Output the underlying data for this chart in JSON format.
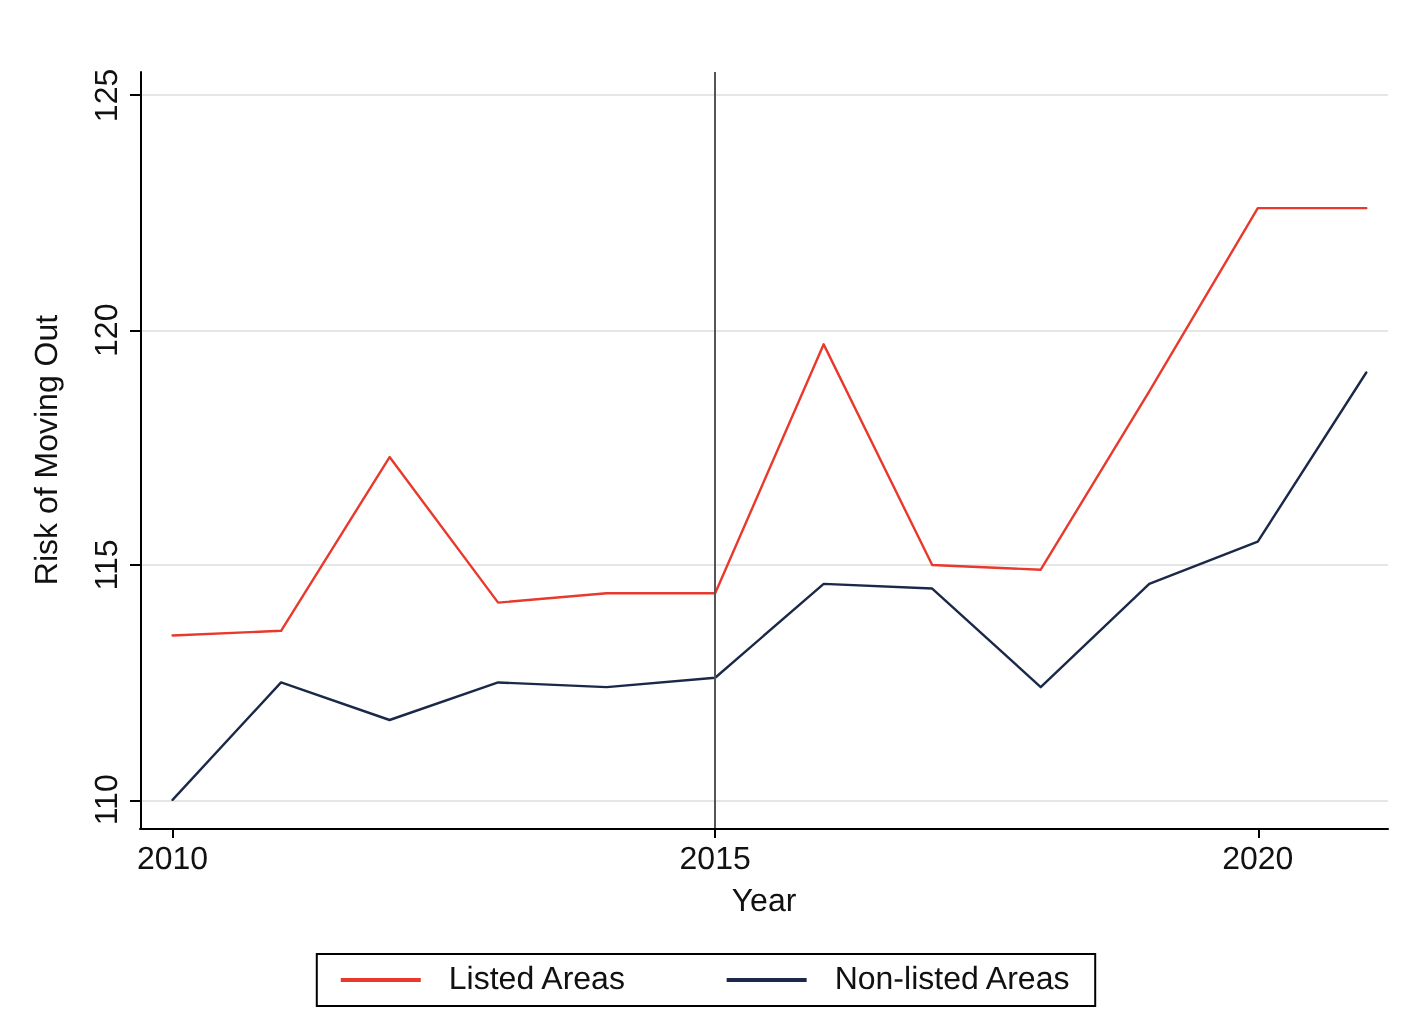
{
  "chart_data": {
    "type": "line",
    "xlabel": "Year",
    "ylabel": "Risk of Moving Out",
    "x": [
      2010,
      2011,
      2012,
      2013,
      2014,
      2015,
      2016,
      2017,
      2018,
      2019,
      2020,
      2021
    ],
    "series": [
      {
        "name": "Listed Areas",
        "color": "#e8392c",
        "values": [
          113.5,
          113.6,
          117.3,
          114.2,
          114.4,
          114.4,
          119.7,
          115.0,
          114.9,
          118.7,
          122.6,
          122.6
        ]
      },
      {
        "name": "Non-listed Areas",
        "color": "#1b2848",
        "values": [
          110.0,
          112.5,
          111.7,
          112.5,
          112.4,
          112.6,
          114.6,
          114.5,
          112.4,
          114.6,
          115.5,
          119.1
        ]
      }
    ],
    "xlim": [
      2009.7,
      2021.2
    ],
    "xticks": [
      2010,
      2015,
      2020
    ],
    "ylim": [
      109.4,
      125.5
    ],
    "yticks": [
      110,
      115,
      120,
      125
    ],
    "ref_lines": [
      {
        "axis": "x",
        "value": 2015,
        "color": "#555555",
        "line_style": "solid"
      }
    ],
    "grid": "y",
    "legend": "bottom",
    "marker": "none",
    "line_style": "solid"
  }
}
